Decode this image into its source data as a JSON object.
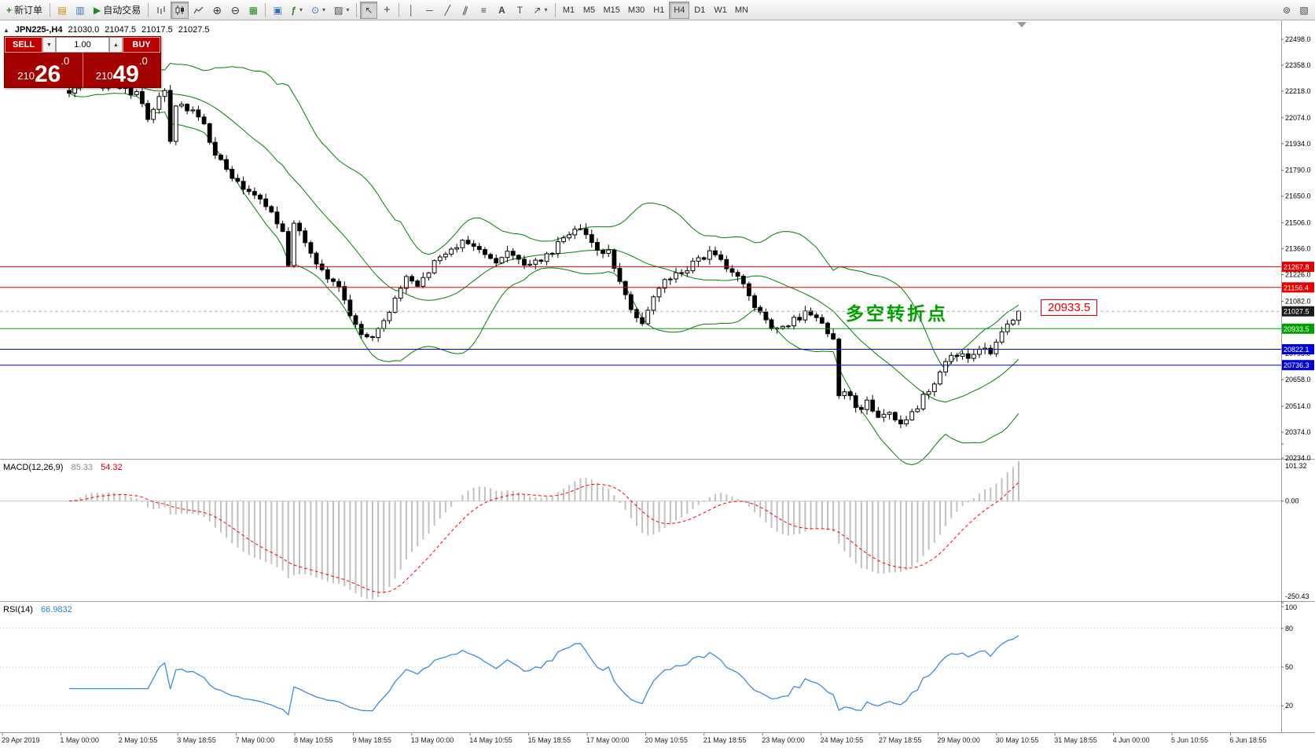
{
  "toolbar": {
    "new_order_label": "新订单",
    "auto_trading_label": "自动交易",
    "timeframes": [
      "M1",
      "M5",
      "M15",
      "M30",
      "H1",
      "H4",
      "D1",
      "W1",
      "MN"
    ],
    "active_timeframe": "H4"
  },
  "icons": {
    "collapse_panel": "▲",
    "new_order": "+",
    "charts": "▤",
    "profiles": "▥",
    "auto_trading": "▶",
    "zoom_in": "⊕",
    "zoom_out": "⊖",
    "tile_windows": "▦",
    "arrange_windows": "▣",
    "indicators": "ƒ",
    "periods": "⊙",
    "templates": "▨",
    "cursor": "↖",
    "crosshair": "+",
    "vertical_line": "│",
    "horizontal_line": "─",
    "trend_line": "╱",
    "channel": "∥",
    "fibonacci": "≡",
    "text": "A",
    "text_label": "T",
    "arrows": "↗",
    "dropdown": "▾",
    "search": "⊚",
    "windows": "▧",
    "volume_up": "▲",
    "volume_down": "▼"
  },
  "chart": {
    "symbol_line": "JPN225-,H4",
    "open": "21030.0",
    "high": "21047.5",
    "low": "21017.5",
    "close": "21027.5",
    "annotation": "多空转折点",
    "callout": "20933.5"
  },
  "trade_panel": {
    "sell_label": "SELL",
    "buy_label": "BUY",
    "volume": "1.00",
    "sell_price_full": "21026.0",
    "buy_price_full": "21049.0",
    "sell_price": {
      "prefix": "210",
      "big": "26",
      "suffix": ".0"
    },
    "buy_price": {
      "prefix": "210",
      "big": "49",
      "suffix": ".0"
    }
  },
  "indicators": {
    "macd_label": "MACD(12,26,9)",
    "macd_value": "85.33",
    "macd_signal_value": "54.32",
    "rsi_label": "RSI(14)",
    "rsi_value": "66.9832"
  },
  "colors": {
    "bollinger": "#008000",
    "up_candle": "#ffffff",
    "down_candle": "#000000",
    "candle_border": "#000000",
    "macd_hist": "#c0c0c0",
    "macd_signal": "#ff0000",
    "rsi": "#3d8bd4",
    "hline_red": "#e60000",
    "hline_green": "#00a000",
    "hline_blue": "#0000d2",
    "bid_tag": "#1a1a1a",
    "panel_red": "#a30000",
    "button_red": "#c00000"
  },
  "chart_data": {
    "type": "candlestick+indicators",
    "symbol": "JPN225-",
    "timeframe": "H4",
    "ohlc": [
      21030.0,
      21047.5,
      21017.5,
      21027.5
    ],
    "last_close": 21027.5,
    "candle_count": 170,
    "bollinger": {
      "period": 20,
      "deviation": 2
    },
    "macd": {
      "fast": 12,
      "slow": 26,
      "signal": 9
    },
    "rsi_period": 14,
    "price_axis": {
      "max": 22498.0,
      "min": 20234.0,
      "labels": [
        22498.0,
        22358.0,
        22218.0,
        22074.0,
        21934.0,
        21790.0,
        21650.0,
        21506.0,
        21366.0,
        21226.0,
        21082.0,
        20942.0,
        20798.0,
        20658.0,
        20514.0,
        20374.0,
        20234.0
      ]
    },
    "price_lines": [
      {
        "value": 21267.8,
        "color": "#e60000",
        "style": "solid"
      },
      {
        "value": 21156.4,
        "color": "#e60000",
        "style": "solid"
      },
      {
        "value": 21027.5,
        "color": "#b0b0b0",
        "style": "dash"
      },
      {
        "value": 20933.5,
        "color": "#00a000",
        "style": "solid"
      },
      {
        "value": 20822.1,
        "color": "#0000d2",
        "style": "solid"
      },
      {
        "value": 20736.3,
        "color": "#0000d2",
        "style": "solid"
      }
    ],
    "price_tags": [
      {
        "value": 21267.8,
        "color": "#e60000"
      },
      {
        "value": 21156.4,
        "color": "#e60000"
      },
      {
        "value": 21027.5,
        "color": "#1a1a1a"
      },
      {
        "value": 20933.5,
        "color": "#00a000"
      },
      {
        "value": 20822.1,
        "color": "#0000d2"
      },
      {
        "value": 20736.3,
        "color": "#0000d2"
      }
    ],
    "macd_axis": {
      "max": 101.32,
      "min": -250.43,
      "labels": [
        101.32,
        0,
        -250.43
      ]
    },
    "rsi_axis_labels": [
      100,
      80,
      50,
      20
    ],
    "rsi_levels": [
      80,
      50,
      20
    ],
    "time_labels": [
      "29 Apr 2019",
      "1 May 00:00",
      "2 May 10:55",
      "3 May 18:55",
      "7 May 00:00",
      "8 May 10:55",
      "9 May 18:55",
      "13 May 00:00",
      "14 May 10:55",
      "15 May 18:55",
      "17 May 00:00",
      "20 May 10:55",
      "21 May 18:55",
      "23 May 00:00",
      "24 May 10:55",
      "27 May 18:55",
      "29 May 00:00",
      "30 May 10:55",
      "31 May 18:55",
      "4 Jun 00:00",
      "5 Jun 10:55",
      "6 Jun 18:55"
    ],
    "close_keyframes": [
      [
        0,
        22210
      ],
      [
        2,
        22260
      ],
      [
        4,
        22300
      ],
      [
        6,
        22240
      ],
      [
        8,
        22270
      ],
      [
        10,
        22230
      ],
      [
        12,
        22200
      ],
      [
        14,
        22080
      ],
      [
        16,
        22180
      ],
      [
        17,
        22230
      ],
      [
        18,
        21960
      ],
      [
        19,
        22120
      ],
      [
        20,
        22150
      ],
      [
        22,
        22110
      ],
      [
        24,
        22030
      ],
      [
        26,
        21880
      ],
      [
        28,
        21780
      ],
      [
        30,
        21720
      ],
      [
        32,
        21680
      ],
      [
        34,
        21630
      ],
      [
        36,
        21560
      ],
      [
        38,
        21470
      ],
      [
        39,
        21270
      ],
      [
        40,
        21500
      ],
      [
        42,
        21410
      ],
      [
        44,
        21300
      ],
      [
        46,
        21190
      ],
      [
        48,
        21150
      ],
      [
        50,
        20990
      ],
      [
        52,
        20900
      ],
      [
        54,
        20880
      ],
      [
        56,
        20970
      ],
      [
        58,
        21090
      ],
      [
        60,
        21200
      ],
      [
        62,
        21170
      ],
      [
        64,
        21240
      ],
      [
        66,
        21330
      ],
      [
        68,
        21360
      ],
      [
        70,
        21410
      ],
      [
        72,
        21370
      ],
      [
        74,
        21330
      ],
      [
        76,
        21300
      ],
      [
        78,
        21350
      ],
      [
        80,
        21300
      ],
      [
        82,
        21270
      ],
      [
        84,
        21310
      ],
      [
        86,
        21360
      ],
      [
        88,
        21430
      ],
      [
        90,
        21470
      ],
      [
        92,
        21440
      ],
      [
        94,
        21370
      ],
      [
        96,
        21340
      ],
      [
        98,
        21190
      ],
      [
        100,
        21040
      ],
      [
        102,
        20970
      ],
      [
        104,
        21090
      ],
      [
        106,
        21190
      ],
      [
        108,
        21240
      ],
      [
        110,
        21260
      ],
      [
        112,
        21300
      ],
      [
        114,
        21340
      ],
      [
        116,
        21300
      ],
      [
        118,
        21240
      ],
      [
        120,
        21160
      ],
      [
        122,
        21040
      ],
      [
        124,
        20970
      ],
      [
        126,
        20930
      ],
      [
        128,
        20960
      ],
      [
        130,
        21000
      ],
      [
        132,
        21020
      ],
      [
        134,
        20970
      ],
      [
        136,
        20880
      ],
      [
        137,
        20560
      ],
      [
        138,
        20610
      ],
      [
        140,
        20500
      ],
      [
        142,
        20530
      ],
      [
        144,
        20450
      ],
      [
        146,
        20480
      ],
      [
        148,
        20400
      ],
      [
        150,
        20470
      ],
      [
        152,
        20560
      ],
      [
        154,
        20650
      ],
      [
        156,
        20740
      ],
      [
        158,
        20800
      ],
      [
        160,
        20760
      ],
      [
        162,
        20830
      ],
      [
        164,
        20800
      ],
      [
        166,
        20920
      ],
      [
        168,
        20990
      ],
      [
        169,
        21027.5
      ]
    ]
  }
}
